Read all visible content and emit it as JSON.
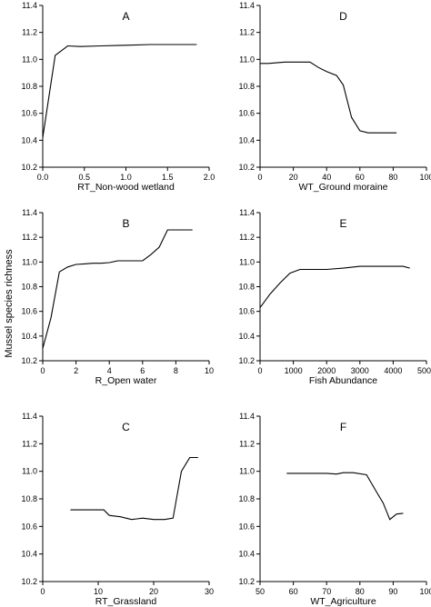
{
  "ylabel": "Mussel species richness",
  "chart_data": [
    {
      "type": "line",
      "letter": "A",
      "xlabel": "RT_Non-wood wetland",
      "xlim": [
        0.0,
        2.0
      ],
      "ylim": [
        10.2,
        11.4
      ],
      "xticks": [
        "0.0",
        "0.5",
        "1.0",
        "1.5",
        "2.0"
      ],
      "yticks": [
        "10.2",
        "10.4",
        "10.6",
        "10.8",
        "11.0",
        "11.2",
        "11.4"
      ],
      "x": [
        0.0,
        0.15,
        0.3,
        0.45,
        0.7,
        1.0,
        1.3,
        1.6,
        1.85
      ],
      "y": [
        10.42,
        11.03,
        11.1,
        11.095,
        11.1,
        11.105,
        11.11,
        11.11,
        11.11
      ]
    },
    {
      "type": "line",
      "letter": "D",
      "xlabel": "WT_Ground moraine",
      "xlim": [
        0,
        100
      ],
      "ylim": [
        10.2,
        11.4
      ],
      "xticks": [
        "0",
        "20",
        "40",
        "60",
        "80",
        "100"
      ],
      "yticks": [
        "10.2",
        "10.4",
        "10.6",
        "10.8",
        "11.0",
        "11.2",
        "11.4"
      ],
      "x": [
        0,
        5,
        15,
        30,
        35,
        40,
        46,
        50,
        55,
        60,
        65,
        70,
        82
      ],
      "y": [
        10.97,
        10.97,
        10.98,
        10.98,
        10.94,
        10.91,
        10.88,
        10.81,
        10.57,
        10.47,
        10.455,
        10.455,
        10.455
      ]
    },
    {
      "type": "line",
      "letter": "B",
      "xlabel": "R_Open water",
      "xlim": [
        0,
        10
      ],
      "ylim": [
        10.2,
        11.4
      ],
      "xticks": [
        "0",
        "2",
        "4",
        "6",
        "8",
        "10"
      ],
      "yticks": [
        "10.2",
        "10.4",
        "10.6",
        "10.8",
        "11.0",
        "11.2",
        "11.4"
      ],
      "x": [
        0,
        0.5,
        1.0,
        1.5,
        2.0,
        2.5,
        3.0,
        3.5,
        4.0,
        4.5,
        5.0,
        6.0,
        6.5,
        7.0,
        7.5,
        9.0
      ],
      "y": [
        10.3,
        10.55,
        10.92,
        10.96,
        10.98,
        10.985,
        10.99,
        10.99,
        10.995,
        11.01,
        11.01,
        11.01,
        11.06,
        11.12,
        11.26,
        11.26
      ]
    },
    {
      "type": "line",
      "letter": "E",
      "xlabel": "Fish Abundance",
      "xlim": [
        0,
        5000
      ],
      "ylim": [
        10.2,
        11.4
      ],
      "xticks": [
        "0",
        "1000",
        "2000",
        "3000",
        "4000",
        "5000"
      ],
      "yticks": [
        "10.2",
        "10.4",
        "10.6",
        "10.8",
        "11.0",
        "11.2",
        "11.4"
      ],
      "x": [
        0,
        300,
        600,
        900,
        1200,
        1600,
        2000,
        2500,
        3000,
        3500,
        4000,
        4300,
        4500
      ],
      "y": [
        10.63,
        10.74,
        10.83,
        10.91,
        10.94,
        10.94,
        10.94,
        10.95,
        10.965,
        10.965,
        10.965,
        10.965,
        10.95
      ]
    },
    {
      "type": "line",
      "letter": "C",
      "xlabel": "RT_Grassland",
      "xlim": [
        0,
        30
      ],
      "ylim": [
        10.2,
        11.4
      ],
      "xticks": [
        "0",
        "10",
        "20",
        "30"
      ],
      "yticks": [
        "10.2",
        "10.4",
        "10.6",
        "10.8",
        "11.0",
        "11.2",
        "11.4"
      ],
      "x": [
        5,
        8,
        11,
        12,
        14,
        16,
        17,
        18,
        20,
        21,
        22,
        23.5,
        25,
        26.5,
        28
      ],
      "y": [
        10.72,
        10.72,
        10.72,
        10.68,
        10.67,
        10.65,
        10.655,
        10.66,
        10.65,
        10.65,
        10.65,
        10.66,
        11.0,
        11.1,
        11.1
      ]
    },
    {
      "type": "line",
      "letter": "F",
      "xlabel": "WT_Agriculture",
      "xlim": [
        50,
        100
      ],
      "ylim": [
        10.2,
        11.4
      ],
      "xticks": [
        "50",
        "60",
        "70",
        "80",
        "90",
        "100"
      ],
      "yticks": [
        "10.2",
        "10.4",
        "10.6",
        "10.8",
        "11.0",
        "11.2",
        "11.4"
      ],
      "x": [
        58,
        62,
        66,
        70,
        73,
        75,
        78,
        82,
        85,
        87,
        89,
        91,
        93
      ],
      "y": [
        10.985,
        10.985,
        10.985,
        10.985,
        10.98,
        10.99,
        10.99,
        10.975,
        10.85,
        10.77,
        10.65,
        10.69,
        10.695
      ]
    }
  ]
}
